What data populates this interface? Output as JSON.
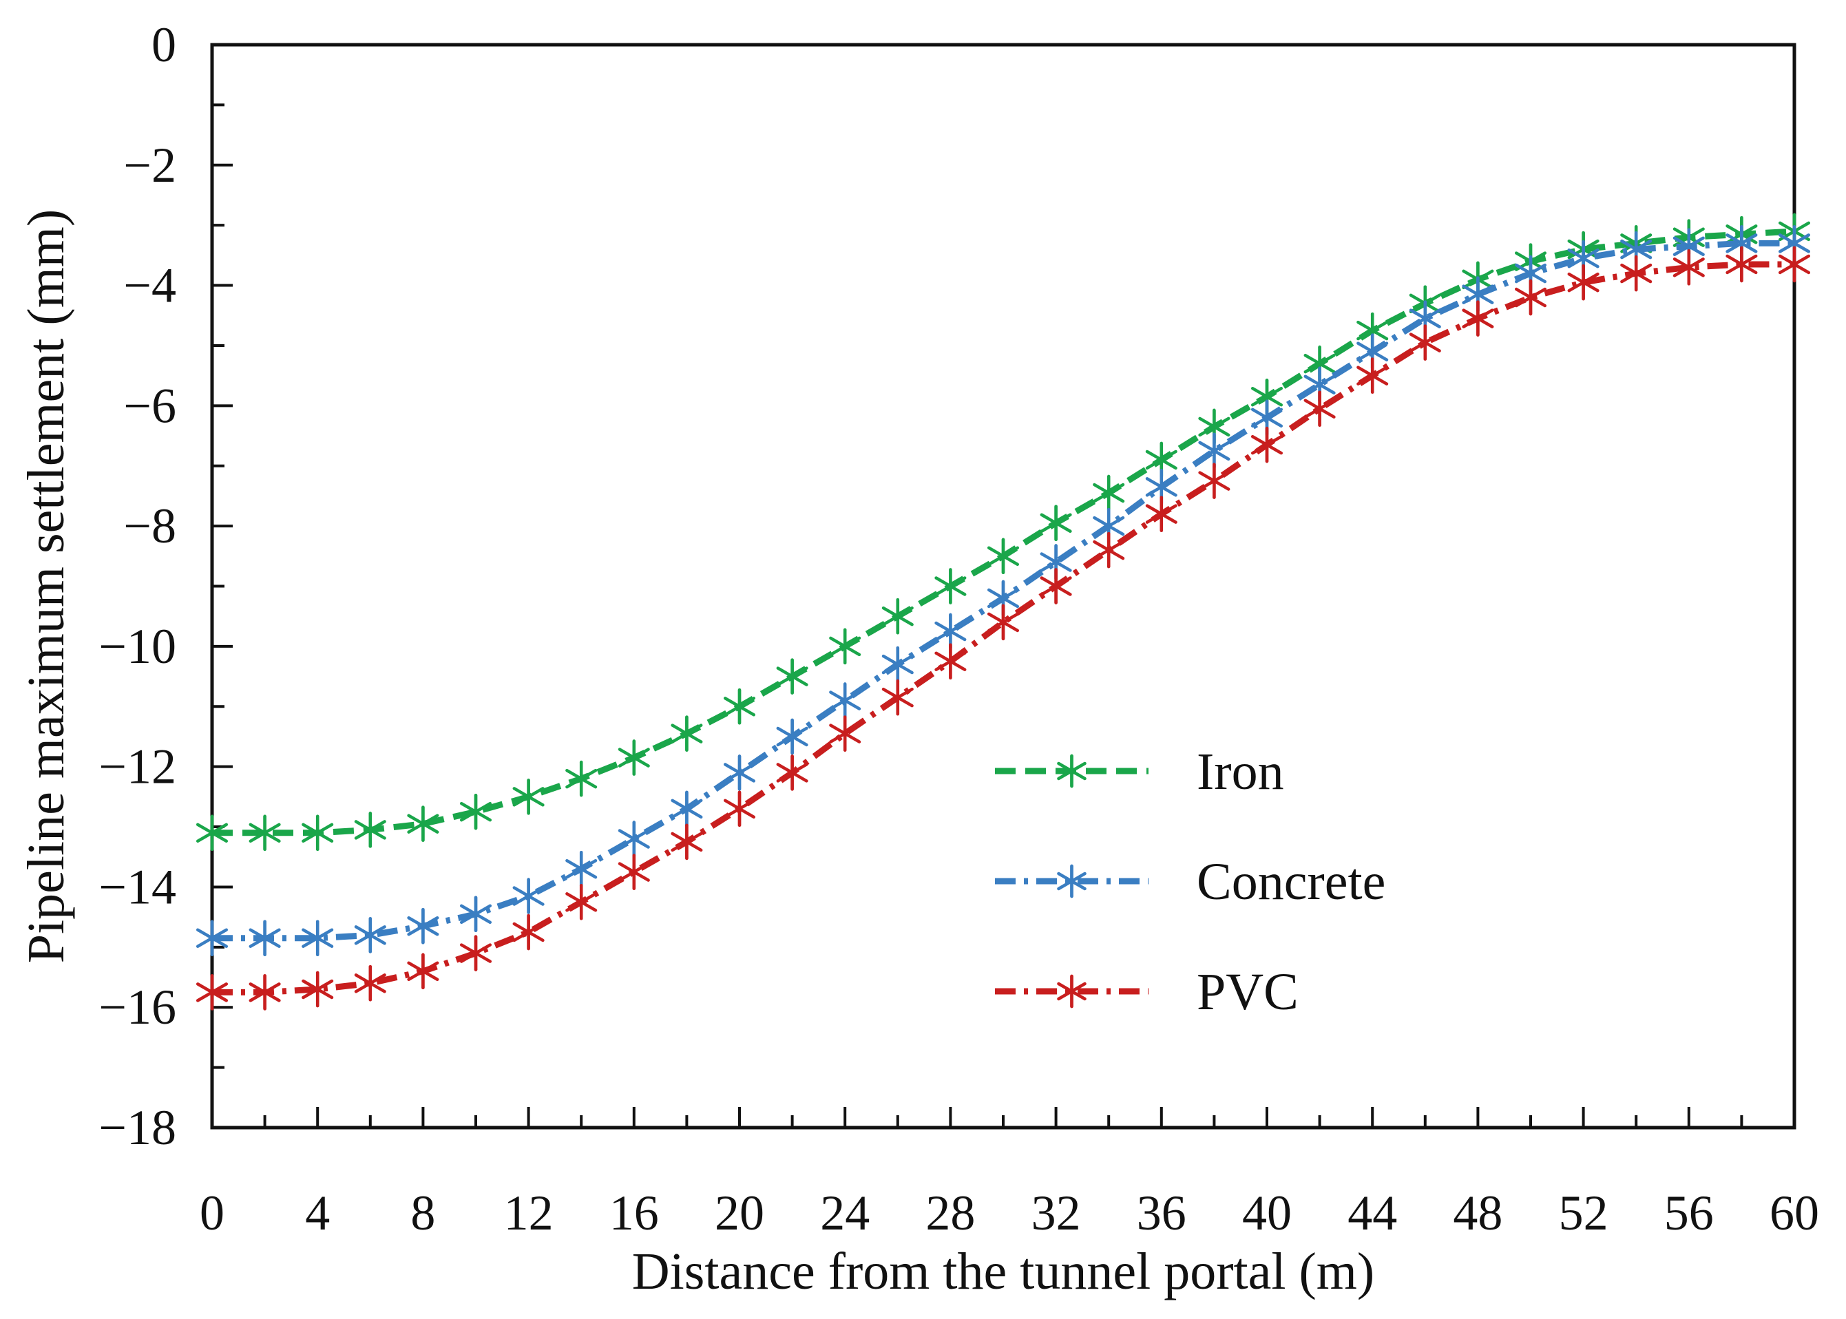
{
  "chart_data": {
    "type": "line",
    "title": "",
    "xlabel": "Distance from the tunnel portal (m)",
    "ylabel": "Pipeline maximum settlement (mm)",
    "xlim": [
      0,
      60
    ],
    "ylim": [
      -18,
      0
    ],
    "grid": false,
    "legend_position": "center-right",
    "x_ticks": [
      0,
      4,
      8,
      12,
      16,
      20,
      24,
      28,
      32,
      36,
      40,
      44,
      48,
      52,
      56,
      60
    ],
    "y_ticks": [
      0,
      -2,
      -4,
      -6,
      -8,
      -10,
      -12,
      -14,
      -16,
      -18
    ],
    "x_tick_labels": [
      "0",
      "4",
      "8",
      "12",
      "16",
      "20",
      "24",
      "28",
      "32",
      "36",
      "40",
      "44",
      "48",
      "52",
      "56",
      "60"
    ],
    "y_tick_labels": [
      "0",
      "−2",
      "−4",
      "−6",
      "−8",
      "−10",
      "−12",
      "−14",
      "−16",
      "−18"
    ],
    "x": [
      0,
      2,
      4,
      6,
      8,
      10,
      12,
      14,
      16,
      18,
      20,
      22,
      24,
      26,
      28,
      30,
      32,
      34,
      36,
      38,
      40,
      42,
      44,
      46,
      48,
      50,
      52,
      54,
      56,
      58,
      60
    ],
    "series": [
      {
        "name": "Iron",
        "color": "#1aa64a",
        "dash": "dashed",
        "marker": "asterisk",
        "values": [
          -13.1,
          -13.1,
          -13.1,
          -13.05,
          -12.95,
          -12.75,
          -12.5,
          -12.2,
          -11.85,
          -11.45,
          -11.0,
          -10.5,
          -10.0,
          -9.5,
          -9.0,
          -8.5,
          -7.95,
          -7.45,
          -6.9,
          -6.35,
          -5.85,
          -5.3,
          -4.75,
          -4.3,
          -3.9,
          -3.6,
          -3.4,
          -3.3,
          -3.2,
          -3.15,
          -3.1
        ]
      },
      {
        "name": "Concrete",
        "color": "#3a7ec2",
        "dash": "dash-dot",
        "marker": "asterisk",
        "values": [
          -14.85,
          -14.85,
          -14.85,
          -14.8,
          -14.65,
          -14.45,
          -14.15,
          -13.7,
          -13.2,
          -12.7,
          -12.1,
          -11.5,
          -10.9,
          -10.3,
          -9.75,
          -9.2,
          -8.6,
          -8.0,
          -7.35,
          -6.75,
          -6.2,
          -5.65,
          -5.1,
          -4.55,
          -4.15,
          -3.8,
          -3.55,
          -3.4,
          -3.35,
          -3.3,
          -3.3
        ]
      },
      {
        "name": "PVC",
        "color": "#c81e1e",
        "dash": "dash-dot",
        "marker": "asterisk",
        "values": [
          -15.75,
          -15.75,
          -15.7,
          -15.6,
          -15.4,
          -15.1,
          -14.75,
          -14.25,
          -13.75,
          -13.25,
          -12.7,
          -12.1,
          -11.45,
          -10.85,
          -10.25,
          -9.6,
          -9.0,
          -8.4,
          -7.8,
          -7.25,
          -6.65,
          -6.05,
          -5.5,
          -4.95,
          -4.55,
          -4.2,
          -3.95,
          -3.8,
          -3.7,
          -3.65,
          -3.65
        ]
      }
    ]
  }
}
